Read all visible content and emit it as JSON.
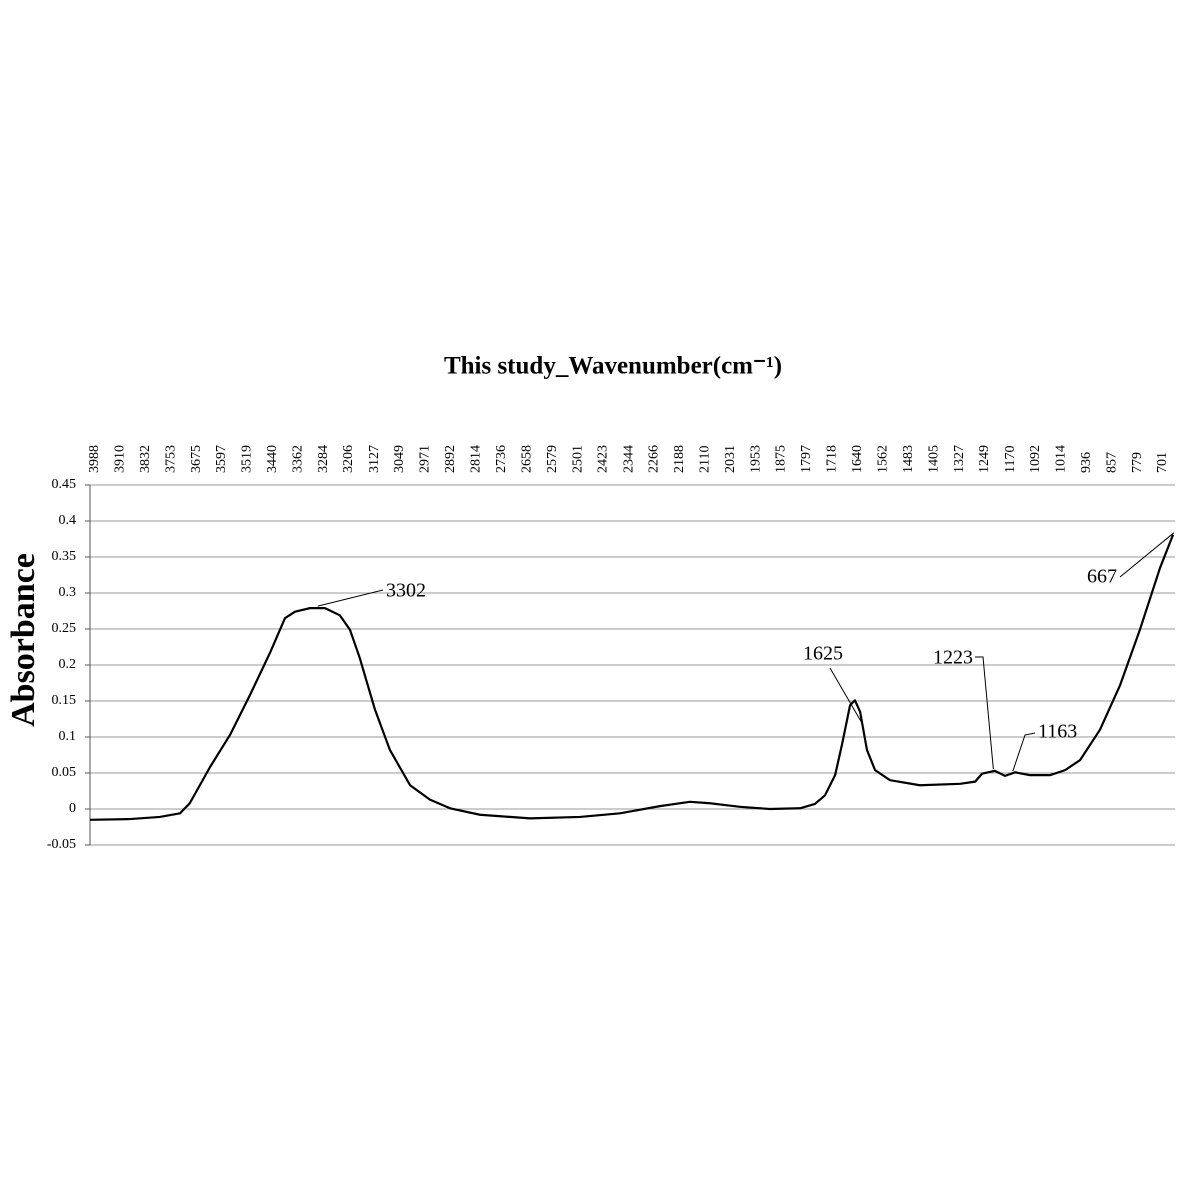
{
  "chart_data": {
    "type": "line",
    "title": "This study_Wavenumber(cm⁻¹)",
    "y_label": "Absorbance",
    "x": [
      4003,
      3880,
      3788,
      3726,
      3696,
      3665,
      3634,
      3572,
      3511,
      3449,
      3403,
      3372,
      3326,
      3280,
      3234,
      3203,
      3173,
      3126,
      3080,
      3018,
      2957,
      2895,
      2803,
      2649,
      2495,
      2372,
      2249,
      2157,
      2095,
      2003,
      1911,
      1818,
      1772,
      1741,
      1710,
      1689,
      1664,
      1649,
      1633,
      1612,
      1587,
      1541,
      1449,
      1325,
      1279,
      1258,
      1218,
      1187,
      1156,
      1110,
      1049,
      1002,
      956,
      895,
      833,
      772,
      710,
      670
    ],
    "series": [
      {
        "name": "This study",
        "color": "#000000",
        "values": [
          -0.015,
          -0.014,
          -0.011,
          -0.006,
          0.008,
          0.033,
          0.058,
          0.103,
          0.158,
          0.217,
          0.265,
          0.274,
          0.279,
          0.279,
          0.269,
          0.249,
          0.21,
          0.138,
          0.082,
          0.033,
          0.013,
          0.001,
          -0.008,
          -0.013,
          -0.011,
          -0.006,
          0.004,
          0.01,
          0.008,
          0.003,
          0.0,
          0.001,
          0.007,
          0.019,
          0.047,
          0.089,
          0.144,
          0.151,
          0.135,
          0.082,
          0.054,
          0.04,
          0.033,
          0.035,
          0.038,
          0.049,
          0.053,
          0.046,
          0.051,
          0.047,
          0.047,
          0.054,
          0.068,
          0.11,
          0.172,
          0.249,
          0.335,
          0.381
        ]
      }
    ],
    "xlim": [
      4003,
      664
    ],
    "xticks": [
      3988,
      3910,
      3832,
      3753,
      3675,
      3597,
      3519,
      3440,
      3362,
      3284,
      3206,
      3127,
      3049,
      2971,
      2892,
      2814,
      2736,
      2658,
      2579,
      2501,
      2423,
      2344,
      2266,
      2188,
      2110,
      2031,
      1953,
      1875,
      1797,
      1718,
      1640,
      1562,
      1483,
      1405,
      1327,
      1249,
      1170,
      1092,
      1014,
      936,
      857,
      779,
      701
    ],
    "ylim": [
      -0.05,
      0.45
    ],
    "yticks": [
      -0.05,
      0,
      0.05,
      0.1,
      0.15,
      0.2,
      0.25,
      0.3,
      0.35,
      0.4,
      0.45
    ],
    "grid": true,
    "annotations": [
      {
        "x": 3302
      },
      {
        "x": 1625
      },
      {
        "x": 1223
      },
      {
        "x": 1163
      },
      {
        "x": 667
      }
    ]
  }
}
